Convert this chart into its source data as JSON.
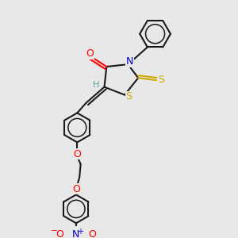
{
  "bg_color": "#e8e8e8",
  "bond_color": "#1a1a1a",
  "atom_colors": {
    "O": "#ff0000",
    "N": "#0000cc",
    "S": "#ccaa00",
    "H": "#5f9ea0",
    "C": "#1a1a1a"
  },
  "lw": 1.5,
  "fontsize": 8.5
}
